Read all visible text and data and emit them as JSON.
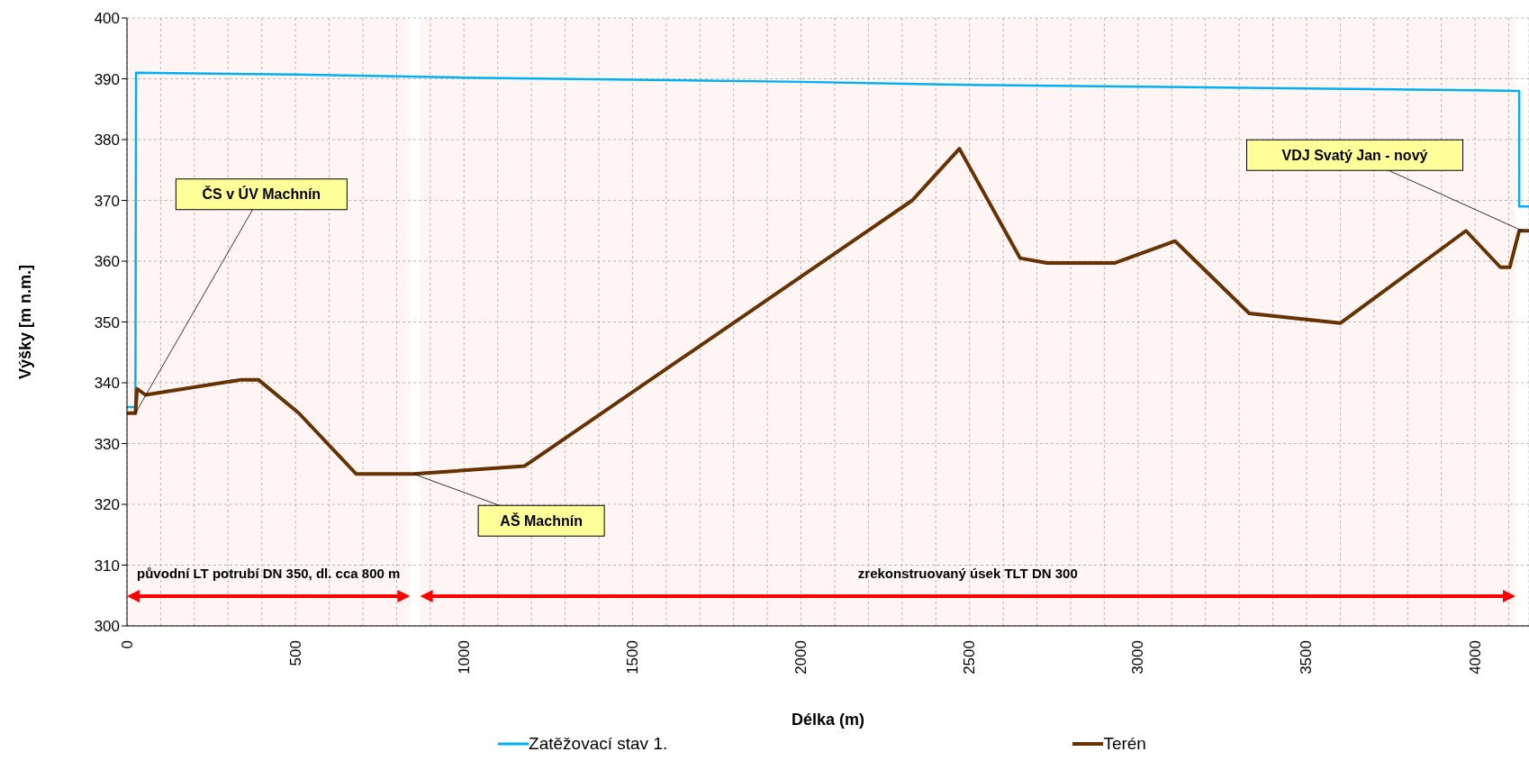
{
  "chart_data": {
    "type": "line",
    "xlabel": "Délka (m)",
    "ylabel": "Výšky  [m n.m.]",
    "xlim": [
      0,
      4160
    ],
    "ylim": [
      300,
      400
    ],
    "xticks": [
      0,
      {
        "value": 100,
        "label": null
      },
      {
        "value": 200,
        "label": null
      },
      {
        "value": 300,
        "label": null
      },
      {
        "value": 400,
        "label": null
      },
      500,
      {
        "value": 600,
        "label": null
      },
      {
        "value": 700,
        "label": null
      },
      {
        "value": 800,
        "label": null
      },
      {
        "value": 900,
        "label": null
      },
      1000,
      {
        "value": 1100,
        "label": null
      },
      {
        "value": 1200,
        "label": null
      },
      {
        "value": 1300,
        "label": null
      },
      {
        "value": 1400,
        "label": null
      },
      1500,
      {
        "value": 1600,
        "label": null
      },
      {
        "value": 1700,
        "label": null
      },
      {
        "value": 1800,
        "label": null
      },
      {
        "value": 1900,
        "label": null
      },
      2000,
      {
        "value": 2100,
        "label": null
      },
      {
        "value": 2200,
        "label": null
      },
      {
        "value": 2300,
        "label": null
      },
      {
        "value": 2400,
        "label": null
      },
      2500,
      {
        "value": 2600,
        "label": null
      },
      {
        "value": 2700,
        "label": null
      },
      {
        "value": 2800,
        "label": null
      },
      {
        "value": 2900,
        "label": null
      },
      3000,
      {
        "value": 3100,
        "label": null
      },
      {
        "value": 3200,
        "label": null
      },
      {
        "value": 3300,
        "label": null
      },
      {
        "value": 3400,
        "label": null
      },
      3500,
      {
        "value": 3600,
        "label": null
      },
      {
        "value": 3700,
        "label": null
      },
      {
        "value": 3800,
        "label": null
      },
      {
        "value": 3900,
        "label": null
      },
      4000,
      {
        "value": 4100,
        "label": null
      }
    ],
    "yticks": [
      300,
      310,
      320,
      330,
      340,
      350,
      360,
      370,
      380,
      390,
      400
    ],
    "grid": true,
    "legend": "bottom",
    "marker": "none",
    "line_style": "solid",
    "series": [
      {
        "name": "Zatěžovací stav 1.",
        "color": "#00b0f0",
        "x": [
          0,
          25,
          27,
          500,
          1000,
          2000,
          2500,
          3000,
          3500,
          4000,
          4131,
          4131,
          4160
        ],
        "values": [
          336,
          336,
          391,
          390.7,
          390.2,
          389.5,
          389,
          388.7,
          388.4,
          388.1,
          388,
          369,
          369
        ]
      },
      {
        "name": "Terén",
        "color": "#663300",
        "x": [
          0,
          25,
          30,
          55,
          340,
          390,
          510,
          680,
          850,
          1180,
          2330,
          2470,
          2650,
          2730,
          2930,
          3110,
          3330,
          3600,
          3973,
          4075,
          4103,
          4131,
          4160
        ],
        "values": [
          335,
          335,
          339,
          338,
          340.5,
          340.5,
          335,
          325,
          325,
          326.3,
          370,
          378.5,
          360.5,
          359.7,
          359.7,
          363.3,
          351.4,
          349.8,
          365,
          359,
          359,
          365,
          365
        ]
      }
    ],
    "annotations": [
      {
        "text": "ČS v ÚV Machnín",
        "x": 25,
        "y": 335
      },
      {
        "text": "AŠ Machnín",
        "x": 850,
        "y": 325
      },
      {
        "text": "VDJ Svatý Jan - nový",
        "x": 4140,
        "y": 365
      }
    ],
    "bands": [
      {
        "axis": "x",
        "from": 0,
        "to": 840,
        "label": "původní LT potrubí DN 350, dl. cca 800 m",
        "color": "#ff0000"
      },
      {
        "axis": "x",
        "from": 870,
        "to": 4120,
        "label": "zrekonstruovaný úsek TLT DN 300",
        "color": "#ff0000"
      }
    ]
  }
}
